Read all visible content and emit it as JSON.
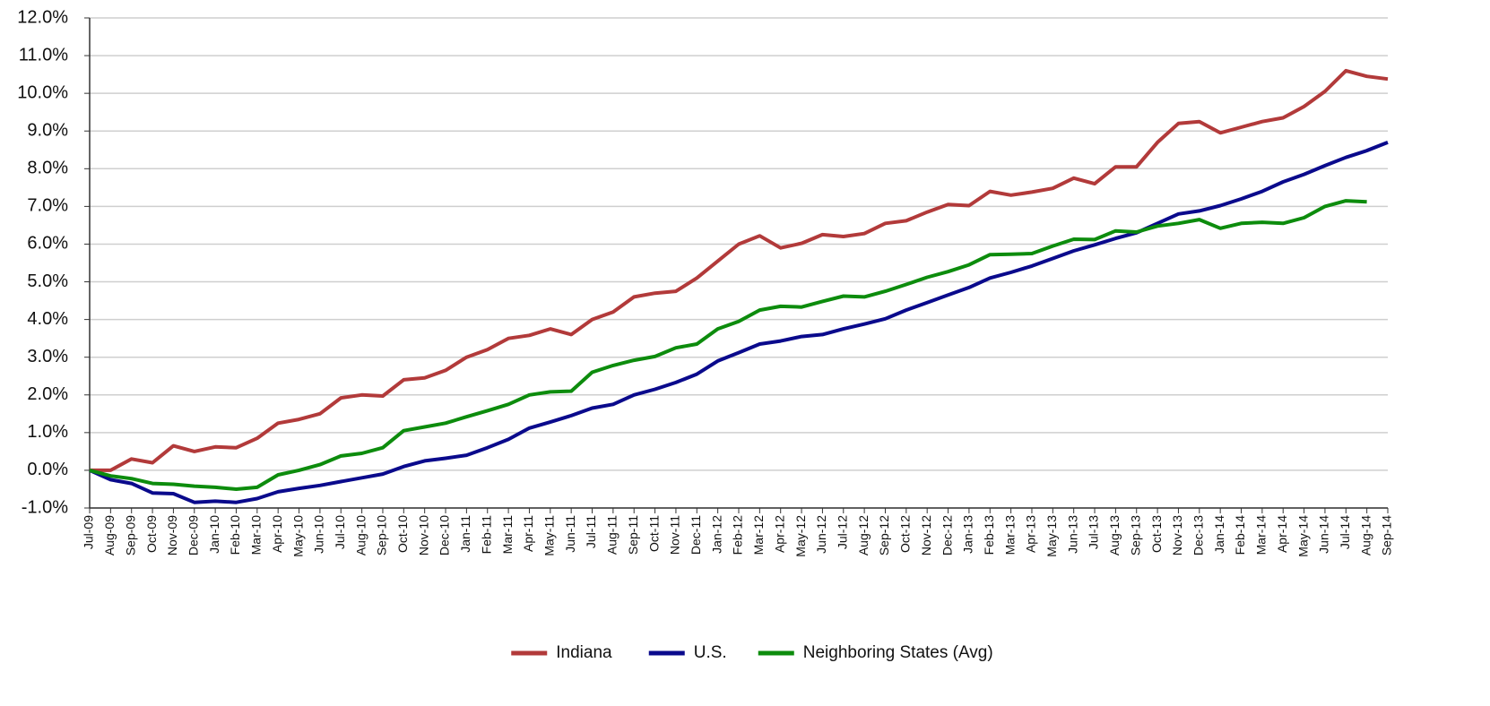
{
  "chart_data": {
    "type": "line",
    "categories": [
      "Jul-09",
      "Aug-09",
      "Sep-09",
      "Oct-09",
      "Nov-09",
      "Dec-09",
      "Jan-10",
      "Feb-10",
      "Mar-10",
      "Apr-10",
      "May-10",
      "Jun-10",
      "Jul-10",
      "Aug-10",
      "Sep-10",
      "Oct-10",
      "Nov-10",
      "Dec-10",
      "Jan-11",
      "Feb-11",
      "Mar-11",
      "Apr-11",
      "May-11",
      "Jun-11",
      "Jul-11",
      "Aug-11",
      "Sep-11",
      "Oct-11",
      "Nov-11",
      "Dec-11",
      "Jan-12",
      "Feb-12",
      "Mar-12",
      "Apr-12",
      "May-12",
      "Jun-12",
      "Jul-12",
      "Aug-12",
      "Sep-12",
      "Oct-12",
      "Nov-12",
      "Dec-12",
      "Jan-13",
      "Feb-13",
      "Mar-13",
      "Apr-13",
      "May-13",
      "Jun-13",
      "Jul-13",
      "Aug-13",
      "Sep-13",
      "Oct-13",
      "Nov-13",
      "Dec-13",
      "Jan-14",
      "Feb-14",
      "Mar-14",
      "Apr-14",
      "May-14",
      "Jun-14",
      "Jul-14",
      "Aug-14",
      "Sep-14"
    ],
    "series": [
      {
        "name": "Indiana",
        "color": "#b23a3a",
        "values": [
          0,
          0.0,
          0.3,
          0.2,
          0.65,
          0.5,
          0.62,
          0.6,
          0.85,
          1.25,
          1.35,
          1.5,
          1.92,
          2.0,
          1.97,
          2.4,
          2.45,
          2.65,
          3.0,
          3.2,
          3.5,
          3.58,
          3.75,
          3.6,
          4.0,
          4.2,
          4.6,
          4.7,
          4.75,
          5.1,
          5.55,
          6.0,
          6.22,
          5.9,
          6.02,
          6.25,
          6.2,
          6.28,
          6.55,
          6.62,
          6.85,
          7.05,
          7.02,
          7.4,
          7.3,
          7.38,
          7.48,
          7.75,
          7.6,
          8.05,
          8.05,
          8.7,
          9.2,
          9.25,
          8.95,
          9.1,
          9.25,
          9.35,
          9.65,
          10.05,
          10.6,
          10.45,
          10.38
        ]
      },
      {
        "name": "U.S.",
        "color": "#0a0a8c",
        "values": [
          0,
          -0.25,
          -0.35,
          -0.6,
          -0.62,
          -0.85,
          -0.82,
          -0.85,
          -0.75,
          -0.57,
          -0.48,
          -0.4,
          -0.3,
          -0.2,
          -0.1,
          0.1,
          0.25,
          0.32,
          0.4,
          0.6,
          0.82,
          1.12,
          1.28,
          1.45,
          1.65,
          1.75,
          2.0,
          2.15,
          2.33,
          2.55,
          2.9,
          3.12,
          3.35,
          3.43,
          3.55,
          3.6,
          3.75,
          3.88,
          4.02,
          4.25,
          4.45,
          4.65,
          4.85,
          5.1,
          5.25,
          5.42,
          5.62,
          5.82,
          5.98,
          6.15,
          6.3,
          6.55,
          6.8,
          6.88,
          7.02,
          7.2,
          7.4,
          7.65,
          7.85,
          8.08,
          8.3,
          8.48,
          8.7
        ]
      },
      {
        "name": "Neighboring States (Avg)",
        "color": "#0d8c0d",
        "values": [
          0,
          -0.15,
          -0.22,
          -0.35,
          -0.37,
          -0.42,
          -0.45,
          -0.5,
          -0.45,
          -0.12,
          0.0,
          0.15,
          0.38,
          0.45,
          0.6,
          1.05,
          1.15,
          1.25,
          1.42,
          1.58,
          1.75,
          2.0,
          2.08,
          2.1,
          2.6,
          2.78,
          2.92,
          3.02,
          3.25,
          3.35,
          3.75,
          3.95,
          4.25,
          4.35,
          4.33,
          4.48,
          4.62,
          4.6,
          4.75,
          4.93,
          5.12,
          5.27,
          5.45,
          5.72,
          5.73,
          5.75,
          5.95,
          6.13,
          6.12,
          6.35,
          6.32,
          6.48,
          6.55,
          6.65,
          6.42,
          6.55,
          6.58,
          6.55,
          6.7,
          7.0,
          7.15,
          7.12,
          null
        ]
      }
    ],
    "ylim": [
      -1,
      12
    ],
    "yticks": [
      {
        "value": -1,
        "label": "-1.0%"
      },
      {
        "value": 0,
        "label": "0.0%"
      },
      {
        "value": 1,
        "label": "1.0%"
      },
      {
        "value": 2,
        "label": "2.0%"
      },
      {
        "value": 3,
        "label": "3.0%"
      },
      {
        "value": 4,
        "label": "4.0%"
      },
      {
        "value": 5,
        "label": "5.0%"
      },
      {
        "value": 6,
        "label": "6.0%"
      },
      {
        "value": 7,
        "label": "7.0%"
      },
      {
        "value": 8,
        "label": "8.0%"
      },
      {
        "value": 9,
        "label": "9.0%"
      },
      {
        "value": 10,
        "label": "10.0%"
      },
      {
        "value": 11,
        "label": "11.0%"
      },
      {
        "value": 12,
        "label": "12.0%"
      }
    ],
    "grid": true,
    "legend": "bottom"
  }
}
